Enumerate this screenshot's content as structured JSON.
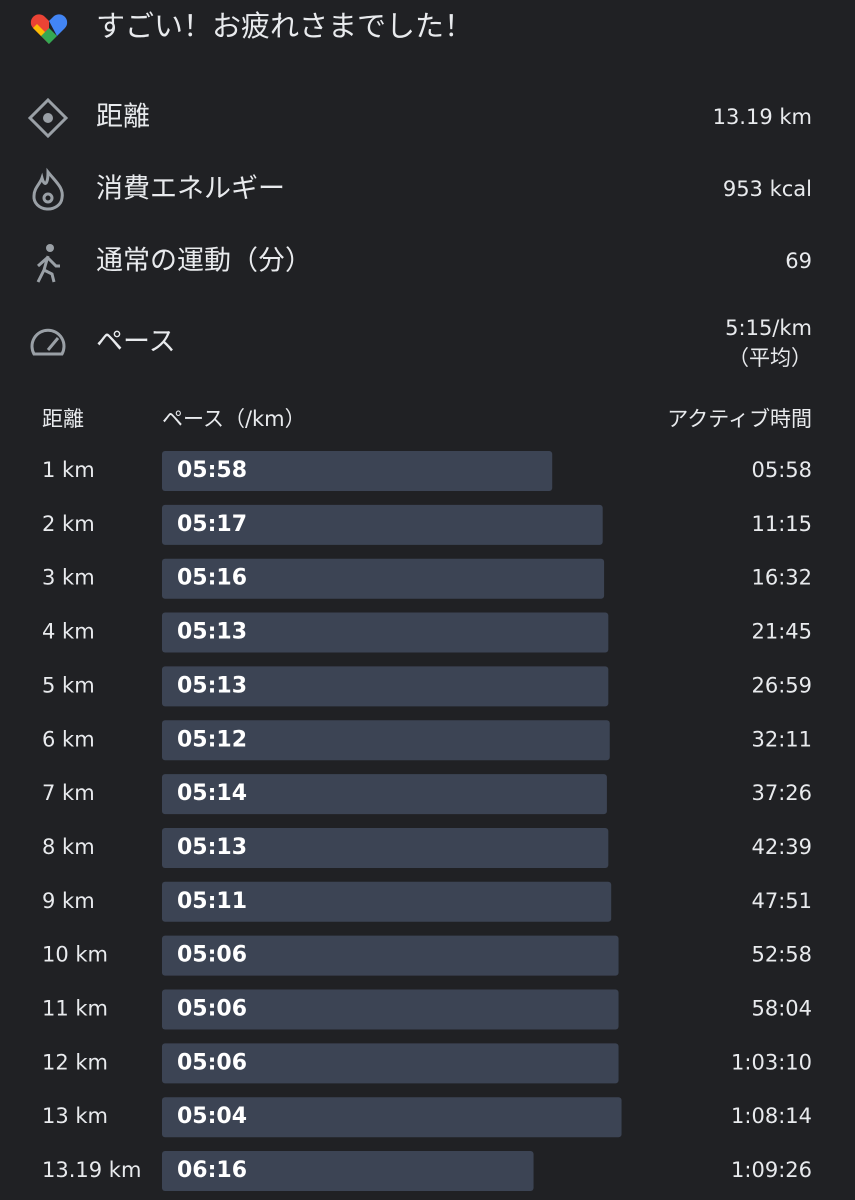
{
  "header": {
    "title": "すごい！お疲れさまでした！"
  },
  "stats": [
    {
      "label": "距離",
      "value": "13.19 km"
    },
    {
      "label": "消費エネルギー",
      "value": "953 kcal"
    },
    {
      "label": "通常の運動（分）",
      "value": "69"
    },
    {
      "label": "ペース",
      "value": "5:15/km",
      "note": "（平均）"
    }
  ],
  "splits": {
    "headers": [
      "距離",
      "ペース（/km）",
      "アクティブ時間"
    ],
    "rows": [
      [
        "1 km",
        "05:58",
        "05:58"
      ],
      [
        "2 km",
        "05:17",
        "11:15"
      ],
      [
        "3 km",
        "05:16",
        "16:32"
      ],
      [
        "4 km",
        "05:13",
        "21:45"
      ],
      [
        "5 km",
        "05:13",
        "26:59"
      ],
      [
        "6 km",
        "05:12",
        "32:11"
      ],
      [
        "7 km",
        "05:14",
        "37:26"
      ],
      [
        "8 km",
        "05:13",
        "42:39"
      ],
      [
        "9 km",
        "05:11",
        "47:51"
      ],
      [
        "10 km",
        "05:06",
        "52:58"
      ],
      [
        "11 km",
        "05:06",
        "58:04"
      ],
      [
        "12 km",
        "05:06",
        "1:03:10"
      ],
      [
        "13 km",
        "05:04",
        "1:08:14"
      ],
      [
        "13.19 km",
        "06:16",
        "1:09:26"
      ]
    ]
  }
}
